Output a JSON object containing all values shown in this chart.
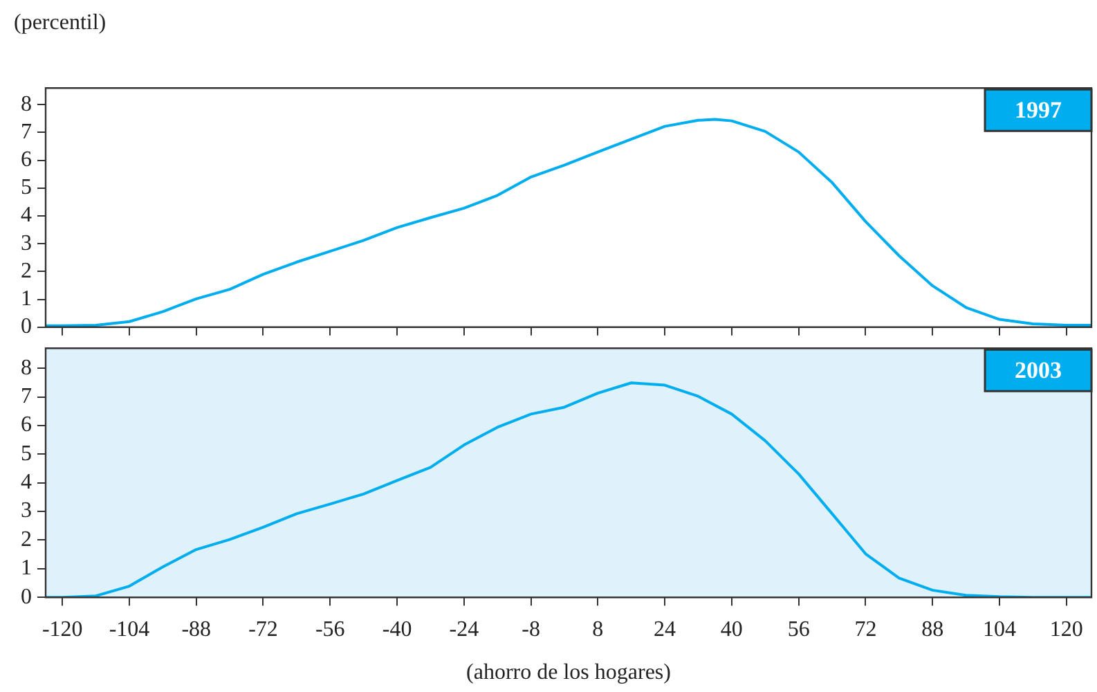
{
  "chart_data": [
    {
      "type": "line",
      "ylabel": "(percentil)",
      "x": [
        -124,
        -120,
        -112,
        -104,
        -96,
        -88,
        -80,
        -72,
        -64,
        -56,
        -48,
        -40,
        -32,
        -24,
        -16,
        -8,
        0,
        8,
        16,
        24,
        32,
        36,
        40,
        48,
        56,
        64,
        72,
        80,
        88,
        96,
        104,
        112,
        120,
        126
      ],
      "series": [
        {
          "name": "1997",
          "color": "#00aeef",
          "values": [
            0.05,
            0.05,
            0.07,
            0.2,
            0.56,
            1.02,
            1.36,
            1.9,
            2.34,
            2.73,
            3.12,
            3.58,
            3.94,
            4.28,
            4.74,
            5.4,
            5.83,
            6.3,
            6.76,
            7.22,
            7.44,
            7.47,
            7.42,
            7.04,
            6.3,
            5.2,
            3.8,
            2.57,
            1.49,
            0.71,
            0.28,
            0.12,
            0.07,
            0.07
          ]
        }
      ],
      "xlim": [
        -124,
        126
      ],
      "xticks": [
        -120,
        -104,
        -88,
        -72,
        -56,
        -40,
        -24,
        -8,
        8,
        24,
        40,
        56,
        72,
        88,
        104,
        120
      ],
      "ylim": [
        0,
        8.6
      ],
      "yticks": [
        0,
        1,
        2,
        3,
        4,
        5,
        6,
        7,
        8
      ],
      "tick_labels": "y",
      "grid": false,
      "legend": "top right",
      "marker": "none",
      "line_style": "solid"
    },
    {
      "type": "line",
      "xlabel": "(ahorro de los hogares)",
      "x": [
        -124,
        -120,
        -112,
        -104,
        -96,
        -88,
        -80,
        -72,
        -64,
        -56,
        -48,
        -40,
        -32,
        -24,
        -16,
        -8,
        0,
        8,
        16,
        24,
        32,
        40,
        48,
        56,
        64,
        72,
        80,
        88,
        96,
        104,
        112,
        120,
        126
      ],
      "series": [
        {
          "name": "2003",
          "color": "#00aeef",
          "values": [
            0,
            0,
            0.05,
            0.39,
            1.06,
            1.67,
            2.02,
            2.45,
            2.92,
            3.26,
            3.61,
            4.08,
            4.54,
            5.32,
            5.94,
            6.4,
            6.64,
            7.13,
            7.49,
            7.41,
            7.02,
            6.4,
            5.47,
            4.31,
            2.92,
            1.52,
            0.67,
            0.25,
            0.07,
            0.02,
            0,
            0,
            0
          ]
        }
      ],
      "xlim": [
        -124,
        126
      ],
      "xticks": [
        -120,
        -104,
        -88,
        -72,
        -56,
        -40,
        -24,
        -8,
        8,
        24,
        40,
        56,
        72,
        88,
        104,
        120
      ],
      "ylim": [
        0,
        8.7
      ],
      "yticks": [
        0,
        1,
        2,
        3,
        4,
        5,
        6,
        7,
        8
      ],
      "grid": false,
      "legend": "top right",
      "marker": "none",
      "line_style": "solid"
    }
  ]
}
